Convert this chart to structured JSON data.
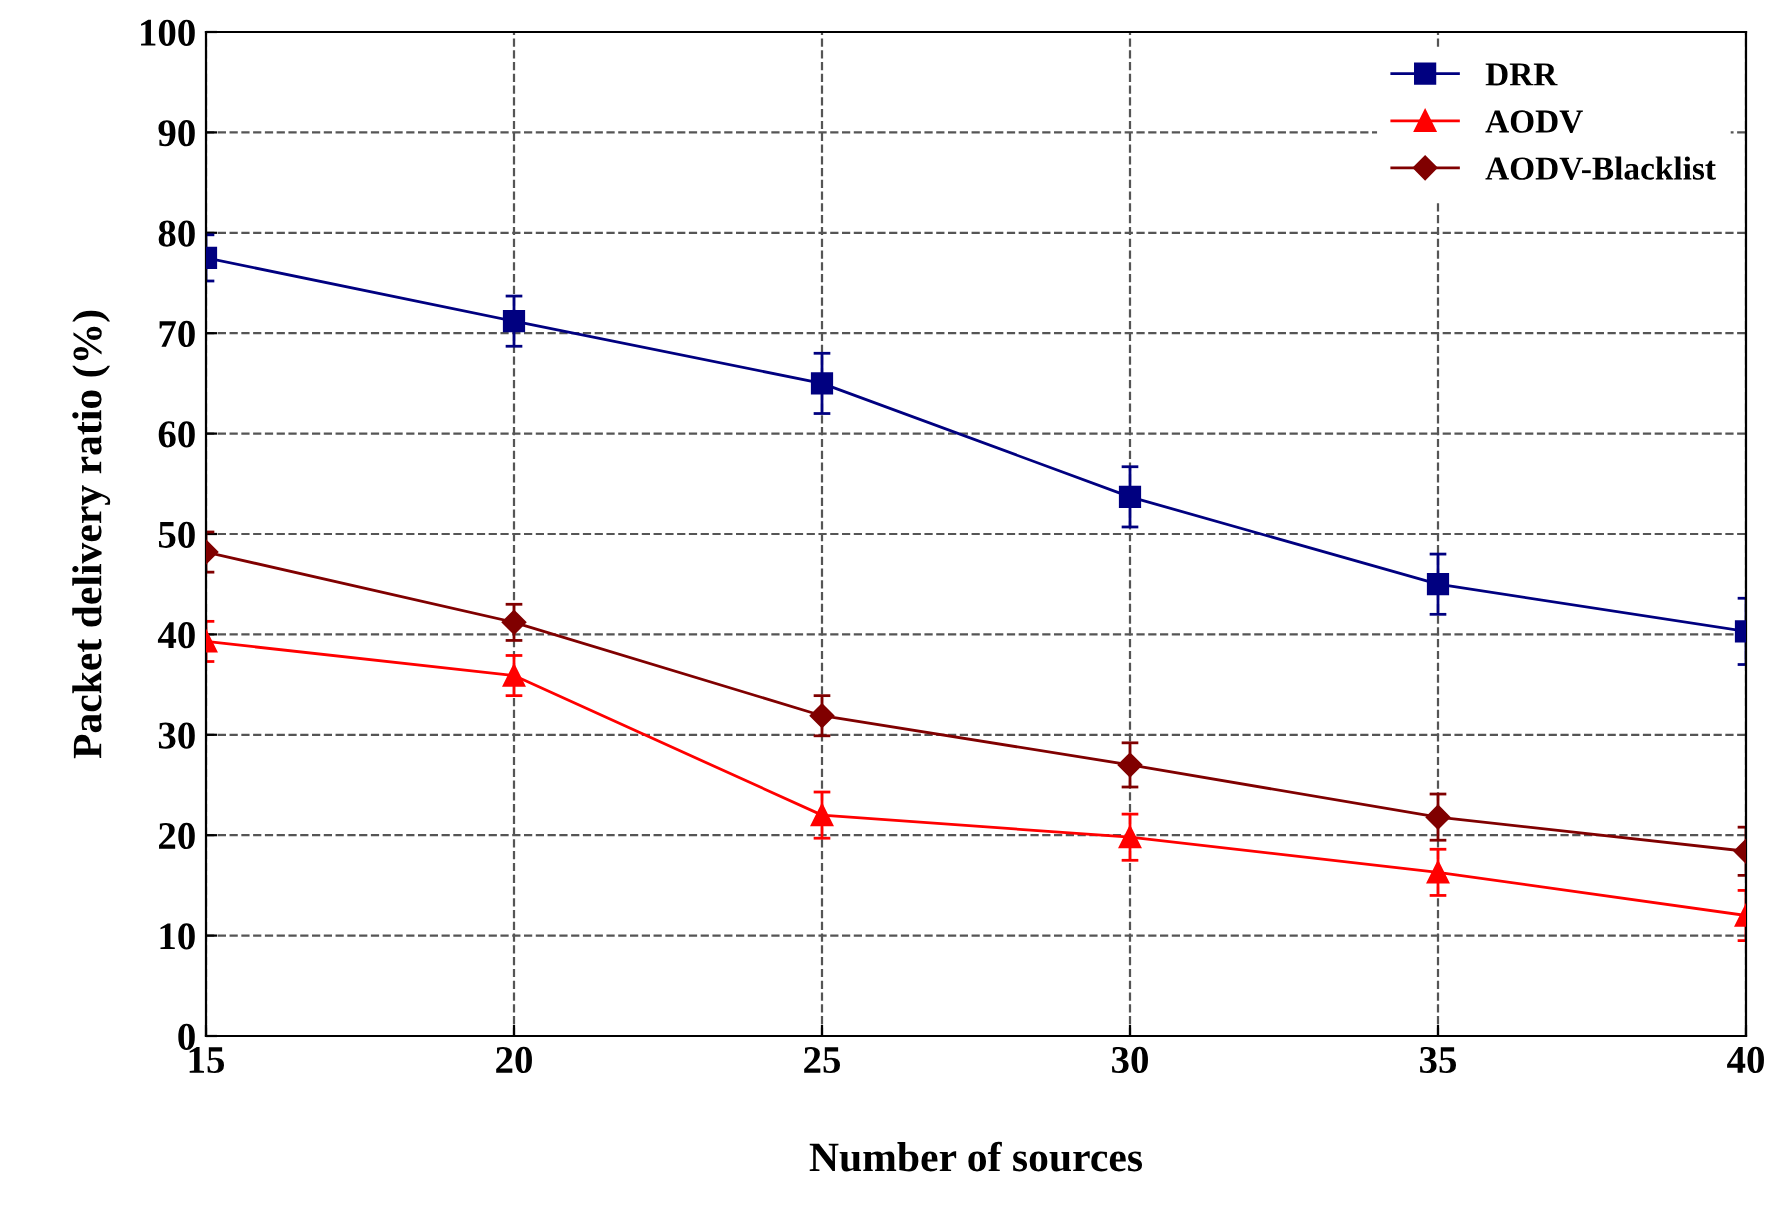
{
  "chart_data": {
    "type": "line",
    "xlabel": "Number of sources",
    "ylabel": "Packet delivery ratio (%)",
    "x": [
      15,
      20,
      25,
      30,
      35,
      40
    ],
    "series": [
      {
        "name": "DRR",
        "color": "#000080",
        "marker": "square",
        "values": [
          77.5,
          71.2,
          65,
          53.7,
          45,
          40.3
        ],
        "errors": [
          2.3,
          2.5,
          3,
          3,
          3,
          3.3
        ]
      },
      {
        "name": "AODV",
        "color": "#ff0000",
        "marker": "triangle",
        "values": [
          39.3,
          35.9,
          22,
          19.8,
          16.3,
          12
        ],
        "errors": [
          2,
          2,
          2.3,
          2.3,
          2.3,
          2.5
        ]
      },
      {
        "name": "AODV-Blacklist",
        "color": "#800000",
        "marker": "diamond",
        "values": [
          48.2,
          41.2,
          31.9,
          27,
          21.8,
          18.4
        ],
        "errors": [
          2,
          1.8,
          2,
          2.2,
          2.3,
          2.4
        ]
      }
    ],
    "xlim": [
      15,
      40
    ],
    "xticks": [
      15,
      20,
      25,
      30,
      35,
      40
    ],
    "ylim": [
      0,
      100
    ],
    "yticks": [
      0,
      10,
      20,
      30,
      40,
      50,
      60,
      70,
      80,
      90,
      100
    ],
    "grid": true,
    "line_style": "solid",
    "legend": "top right"
  }
}
